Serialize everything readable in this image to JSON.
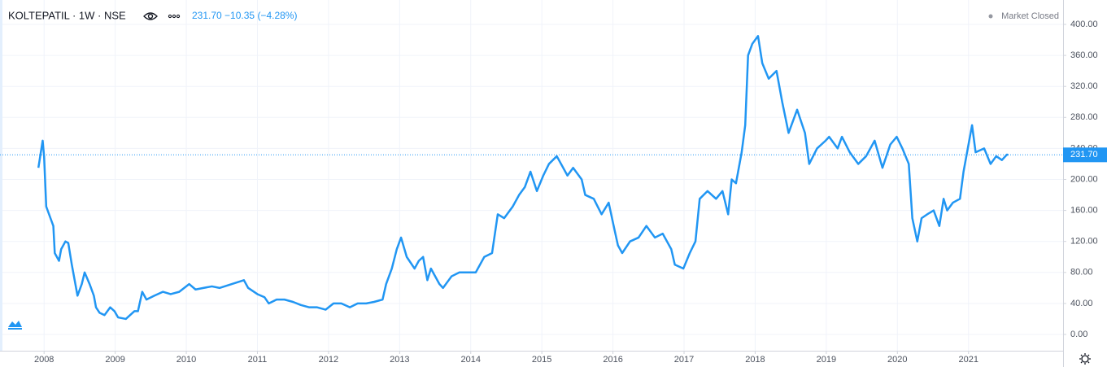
{
  "header": {
    "symbol": "KOLTEPATIL · 1W · NSE",
    "price": "231.70",
    "change": "−10.35",
    "change_pct": "(−4.28%)",
    "status": "Market Closed"
  },
  "chart_data": {
    "type": "line",
    "x": [
      2007.92,
      2007.98,
      2008.0,
      2008.03,
      2008.09,
      2008.13,
      2008.15,
      2008.21,
      2008.24,
      2008.3,
      2008.34,
      2008.39,
      2008.47,
      2008.53,
      2008.57,
      2008.64,
      2008.7,
      2008.73,
      2008.78,
      2008.85,
      2008.93,
      2008.99,
      2009.04,
      2009.15,
      2009.21,
      2009.27,
      2009.32,
      2009.38,
      2009.44,
      2009.55,
      2009.67,
      2009.78,
      2009.9,
      2010.04,
      2010.13,
      2010.24,
      2010.36,
      2010.47,
      2010.64,
      2010.81,
      2010.87,
      2011.0,
      2011.1,
      2011.16,
      2011.27,
      2011.38,
      2011.5,
      2011.61,
      2011.73,
      2011.84,
      2011.96,
      2012.07,
      2012.18,
      2012.3,
      2012.41,
      2012.53,
      2012.64,
      2012.76,
      2012.81,
      2012.89,
      2012.96,
      2013.02,
      2013.1,
      2013.21,
      2013.27,
      2013.33,
      2013.39,
      2013.44,
      2013.56,
      2013.61,
      2013.73,
      2013.84,
      2013.96,
      2014.07,
      2014.19,
      2014.3,
      2014.38,
      2014.47,
      2014.59,
      2014.68,
      2014.76,
      2014.84,
      2014.93,
      2015.02,
      2015.1,
      2015.21,
      2015.27,
      2015.36,
      2015.44,
      2015.56,
      2015.61,
      2015.73,
      2015.84,
      2015.94,
      2016.01,
      2016.07,
      2016.13,
      2016.24,
      2016.36,
      2016.47,
      2016.59,
      2016.7,
      2016.82,
      2016.87,
      2016.99,
      2017.08,
      2017.16,
      2017.22,
      2017.33,
      2017.45,
      2017.54,
      2017.62,
      2017.67,
      2017.73,
      2017.81,
      2017.86,
      2017.9,
      2017.96,
      2018.04,
      2018.1,
      2018.19,
      2018.3,
      2018.38,
      2018.47,
      2018.59,
      2018.7,
      2018.76,
      2018.87,
      2018.99,
      2019.04,
      2019.16,
      2019.22,
      2019.33,
      2019.45,
      2019.56,
      2019.68,
      2019.79,
      2019.9,
      2019.99,
      2020.07,
      2020.16,
      2020.21,
      2020.28,
      2020.34,
      2020.42,
      2020.51,
      2020.59,
      2020.65,
      2020.7,
      2020.78,
      2020.88,
      2020.93,
      2020.99,
      2021.05,
      2021.1,
      2021.22,
      2021.31,
      2021.39,
      2021.47,
      2021.54,
      2021.56
    ],
    "series": [
      {
        "name": "KOLTEPATIL",
        "color": "#2196f3",
        "values": [
          215,
          250,
          230,
          165,
          150,
          140,
          105,
          95,
          110,
          120,
          118,
          90,
          50,
          65,
          80,
          65,
          50,
          35,
          28,
          25,
          35,
          30,
          22,
          20,
          25,
          30,
          30,
          55,
          45,
          50,
          55,
          52,
          55,
          65,
          58,
          60,
          62,
          60,
          65,
          70,
          60,
          52,
          48,
          40,
          45,
          45,
          42,
          38,
          35,
          35,
          32,
          40,
          40,
          35,
          40,
          40,
          42,
          45,
          65,
          85,
          110,
          125,
          100,
          85,
          95,
          100,
          70,
          85,
          65,
          60,
          75,
          80,
          80,
          80,
          100,
          105,
          155,
          150,
          165,
          180,
          190,
          210,
          185,
          205,
          220,
          230,
          220,
          205,
          215,
          200,
          180,
          175,
          155,
          170,
          140,
          115,
          105,
          120,
          125,
          140,
          125,
          130,
          110,
          90,
          85,
          105,
          120,
          175,
          185,
          175,
          185,
          155,
          200,
          195,
          235,
          270,
          360,
          375,
          385,
          350,
          330,
          340,
          300,
          260,
          290,
          260,
          220,
          240,
          250,
          255,
          240,
          255,
          235,
          220,
          230,
          250,
          215,
          245,
          255,
          240,
          220,
          150,
          120,
          150,
          155,
          160,
          140,
          175,
          160,
          170,
          175,
          210,
          240,
          270,
          235,
          240,
          220,
          230,
          225,
          232,
          231.7
        ]
      }
    ],
    "xlim": [
      2007.38,
      2022.33
    ],
    "ylim": [
      -21,
      431.5
    ],
    "xticks": [
      2008,
      2009,
      2010,
      2011,
      2012,
      2013,
      2014,
      2015,
      2016,
      2017,
      2018,
      2019,
      2020,
      2021
    ],
    "yticks": [
      {
        "value": 0,
        "label": "0.00"
      },
      {
        "value": 40,
        "label": "40.00"
      },
      {
        "value": 80,
        "label": "80.00"
      },
      {
        "value": 120,
        "label": "120.00"
      },
      {
        "value": 160,
        "label": "160.00"
      },
      {
        "value": 200,
        "label": "200.00"
      },
      {
        "value": 240,
        "label": "240.00"
      },
      {
        "value": 280,
        "label": "280.00"
      },
      {
        "value": 320,
        "label": "320.00"
      },
      {
        "value": 360,
        "label": "360.00"
      },
      {
        "value": 400,
        "label": "400.00"
      }
    ],
    "grid": true
  }
}
